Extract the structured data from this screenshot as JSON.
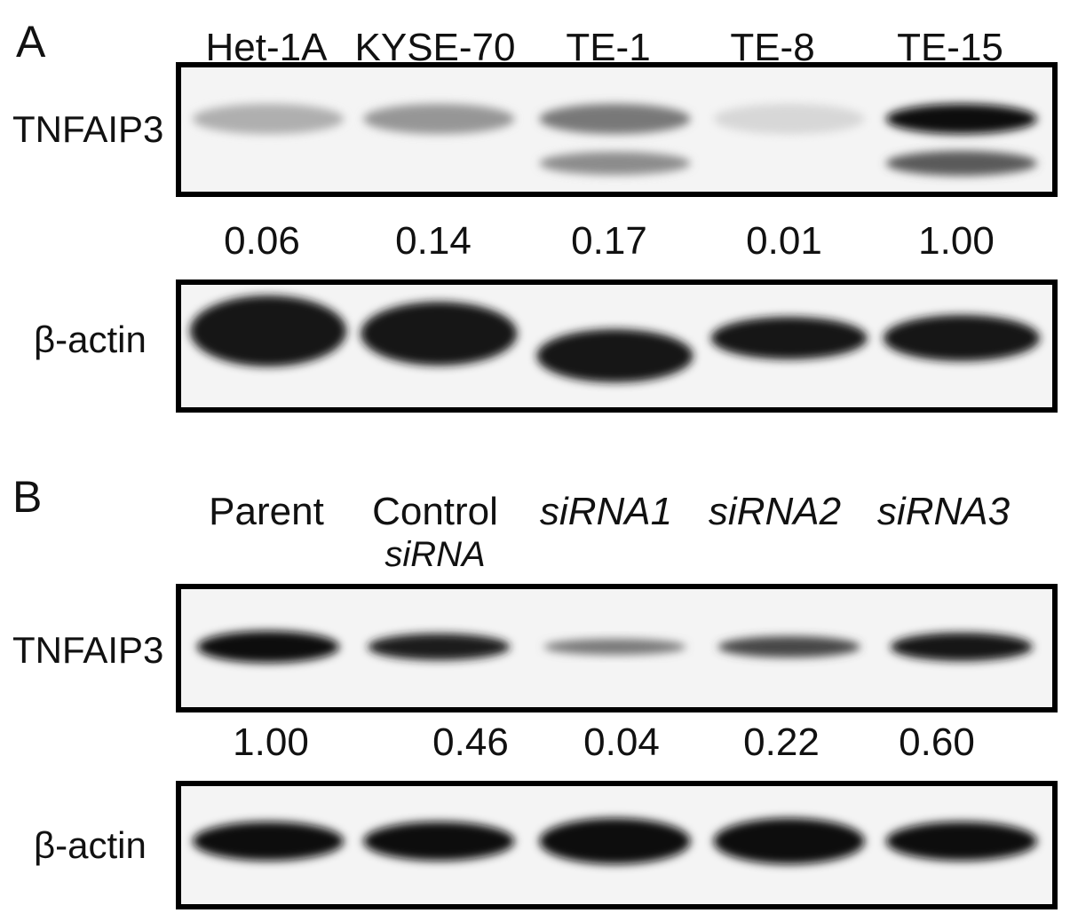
{
  "panel_a": {
    "letter": "A",
    "lanes": [
      "Het-1A",
      "KYSE-70",
      "TE-1",
      "TE-8",
      "TE-15"
    ],
    "rows": {
      "target": "TNFAIP3",
      "control": "β-actin"
    },
    "values": [
      "0.06",
      "0.14",
      "0.17",
      "0.01",
      "1.00"
    ],
    "target_intensity": [
      0.06,
      0.14,
      0.17,
      0.01,
      1.0
    ]
  },
  "panel_b": {
    "letter": "B",
    "lanes": [
      {
        "line1": "Parent",
        "line2": "",
        "italic": false
      },
      {
        "line1": "Control",
        "line2": "siRNA",
        "italic": false
      },
      {
        "line1": "siRNA1",
        "line2": "",
        "italic": true
      },
      {
        "line1": "siRNA2",
        "line2": "",
        "italic": true
      },
      {
        "line1": "siRNA3",
        "line2": "",
        "italic": true
      }
    ],
    "rows": {
      "target": "TNFAIP3",
      "control": "β-actin"
    },
    "values": [
      "1.00",
      "0.46",
      "0.04",
      "0.22",
      "0.60"
    ],
    "target_intensity": [
      1.0,
      0.46,
      0.04,
      0.22,
      0.6
    ]
  }
}
